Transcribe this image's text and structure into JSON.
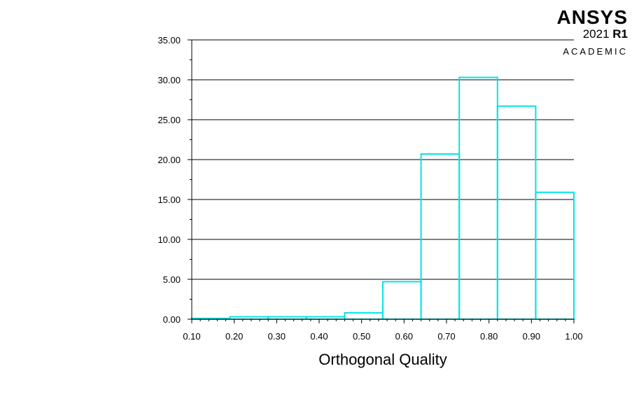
{
  "branding": {
    "name": "ANSYS",
    "version": "2021",
    "release": "R1",
    "edition": "ACADEMIC"
  },
  "chart_data": {
    "type": "bar",
    "title": "",
    "xlabel": "Orthogonal Quality",
    "ylabel": "",
    "bin_edges": [
      0.1,
      0.19,
      0.28,
      0.37,
      0.46,
      0.55,
      0.64,
      0.73,
      0.82,
      0.91,
      1.0
    ],
    "values": [
      0.1,
      0.3,
      0.3,
      0.3,
      0.8,
      4.7,
      20.7,
      30.3,
      26.7,
      15.9
    ],
    "xlim": [
      0.1,
      1.0
    ],
    "ylim": [
      0,
      35
    ],
    "xticks": [
      "0.10",
      "0.20",
      "0.30",
      "0.40",
      "0.50",
      "0.60",
      "0.70",
      "0.80",
      "0.90",
      "1.00"
    ],
    "yticks": [
      "0.00",
      "5.00",
      "10.00",
      "15.00",
      "20.00",
      "25.00",
      "30.00",
      "35.00"
    ],
    "grid": true,
    "colors": {
      "bars": "#00e5e5",
      "grid": "#000000",
      "axes": "#000000"
    }
  }
}
